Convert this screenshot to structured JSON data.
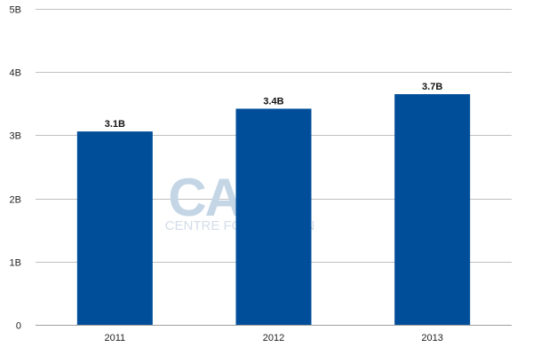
{
  "chart_data": {
    "type": "bar",
    "title": "",
    "xlabel": "",
    "ylabel": "",
    "categories": [
      "2011",
      "2012",
      "2013"
    ],
    "values": [
      3.06,
      3.42,
      3.65
    ],
    "value_labels": [
      "3.1B",
      "3.4B",
      "3.7B"
    ],
    "ylim": [
      0,
      5
    ],
    "yticks": [
      0,
      1,
      2,
      3,
      4,
      5
    ],
    "ytick_labels": [
      "0",
      "1B",
      "2B",
      "3B",
      "4B",
      "5B"
    ],
    "grid": true,
    "legend": "none",
    "colors": {
      "bar": "#004e99",
      "grid": "#c0c0c0",
      "axis": "#a0a0a0",
      "watermark": "#c4d6e6"
    }
  },
  "watermark": {
    "logo_text": "CAPA",
    "tagline": "CENTRE FOR AVIATION"
  }
}
